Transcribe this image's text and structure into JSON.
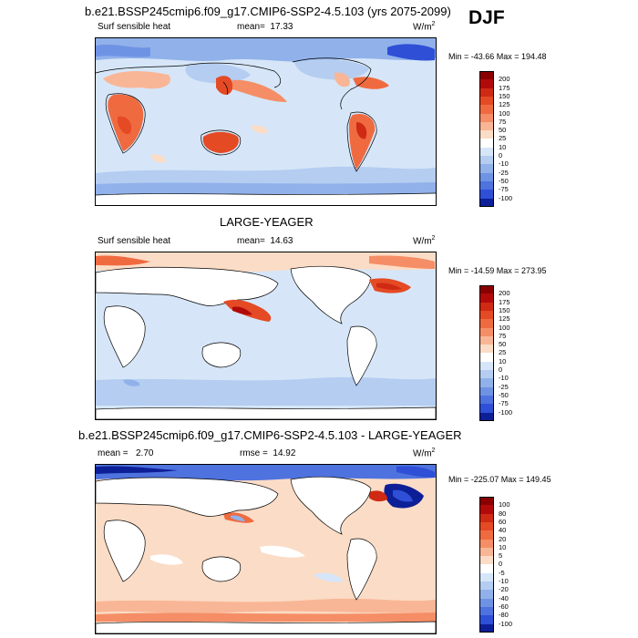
{
  "season": "DJF",
  "panels": [
    {
      "id": "top",
      "title": "b.e21.BSSP245cmip6.f09_g17.CMIP6-SSP2-4.5.103 (yrs 2075-2099)",
      "left_label": "Surf sensible heat",
      "stat_label": "mean=",
      "stat_value": "17.33",
      "stat2_label": "",
      "stat2_value": "",
      "units": "W/m",
      "units_exp": "2",
      "minmax": "Min = -43.66 Max = 194.48",
      "colorbar": {
        "levels": [
          "200",
          "175",
          "150",
          "125",
          "100",
          "75",
          "50",
          "25",
          "10",
          "0",
          "-10",
          "-25",
          "-50",
          "-75",
          "-100"
        ],
        "colors": [
          "#8a0000",
          "#b20a0a",
          "#cf2a14",
          "#e44a24",
          "#f06a40",
          "#f58e66",
          "#f9b696",
          "#fbdcc6",
          "#ffffff",
          "#d6e6f8",
          "#b4cdf1",
          "#91b1ea",
          "#6f93e4",
          "#4e72de",
          "#2e4fd6",
          "#0d1f96"
        ]
      }
    },
    {
      "id": "middle",
      "title": "LARGE-YEAGER",
      "left_label": "Surf sensible heat",
      "stat_label": "mean=",
      "stat_value": "14.63",
      "stat2_label": "",
      "stat2_value": "",
      "units": "W/m",
      "units_exp": "2",
      "minmax": "Min = -14.59 Max = 273.95",
      "colorbar": {
        "levels": [
          "200",
          "175",
          "150",
          "125",
          "100",
          "75",
          "50",
          "25",
          "10",
          "0",
          "-10",
          "-25",
          "-50",
          "-75",
          "-100"
        ],
        "colors": [
          "#8a0000",
          "#b20a0a",
          "#cf2a14",
          "#e44a24",
          "#f06a40",
          "#f58e66",
          "#f9b696",
          "#fbdcc6",
          "#ffffff",
          "#d6e6f8",
          "#b4cdf1",
          "#91b1ea",
          "#6f93e4",
          "#4e72de",
          "#2e4fd6",
          "#0d1f96"
        ]
      }
    },
    {
      "id": "bottom",
      "title": "b.e21.BSSP245cmip6.f09_g17.CMIP6-SSP2-4.5.103 - LARGE-YEAGER",
      "left_label": "",
      "stat_label": "mean =",
      "stat_value": "2.70",
      "stat2_label": "rmse =",
      "stat2_value": "14.92",
      "units": "W/m",
      "units_exp": "2",
      "minmax": "Min = -225.07 Max = 149.45",
      "colorbar": {
        "levels": [
          "100",
          "80",
          "60",
          "40",
          "20",
          "10",
          "5",
          "0",
          "-5",
          "-10",
          "-20",
          "-40",
          "-60",
          "-80",
          "-100"
        ],
        "colors": [
          "#8a0000",
          "#b20a0a",
          "#cf2a14",
          "#e44a24",
          "#f06a40",
          "#f58e66",
          "#f9b696",
          "#fbdcc6",
          "#ffffff",
          "#d6e6f8",
          "#b4cdf1",
          "#91b1ea",
          "#6f93e4",
          "#4e72de",
          "#2e4fd6",
          "#0d1f96"
        ]
      }
    }
  ]
}
